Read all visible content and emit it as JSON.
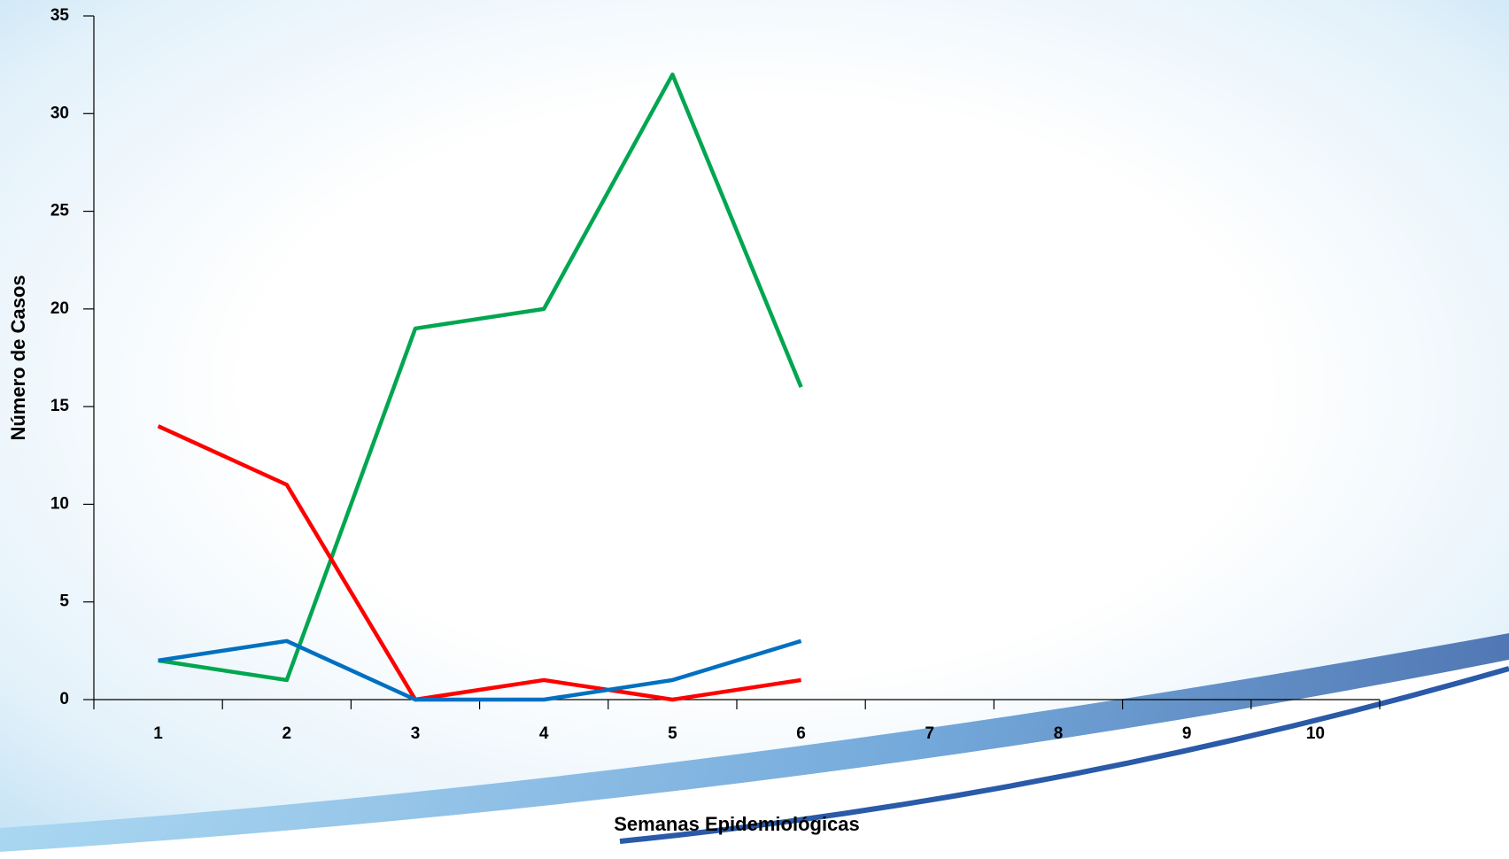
{
  "chart_data": {
    "type": "line",
    "x_label": "Semanas Epidemiológicas",
    "y_label": "Número de Casos",
    "categories": [
      "1",
      "2",
      "3",
      "4",
      "5",
      "6",
      "7",
      "8",
      "9",
      "10"
    ],
    "series": [
      {
        "color": "#00a650",
        "values": [
          2,
          1,
          19,
          20,
          32,
          16,
          null,
          null,
          null,
          null
        ]
      },
      {
        "color": "#ff0000",
        "values": [
          14,
          11,
          0,
          1,
          0,
          1,
          null,
          null,
          null,
          null
        ]
      },
      {
        "color": "#0070c0",
        "values": [
          2,
          3,
          0,
          0,
          1,
          3,
          null,
          null,
          null,
          null
        ]
      }
    ],
    "ylim": [
      0,
      35
    ],
    "yticks": [
      0,
      5,
      10,
      15,
      20,
      25,
      30,
      35
    ]
  }
}
